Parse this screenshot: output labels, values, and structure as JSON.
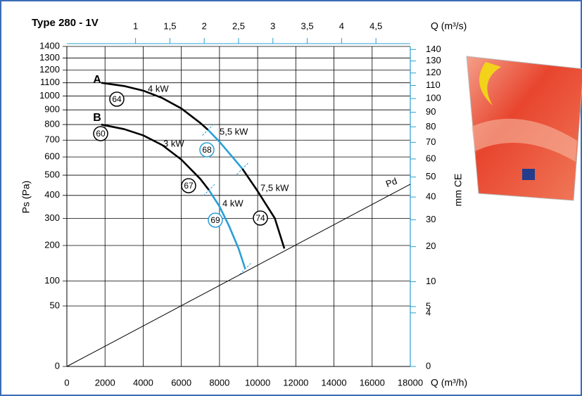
{
  "chart_data": {
    "type": "line",
    "title": "Type 280 - 1V",
    "x_label": "Q (m³/h)",
    "x2_label": "Q (m³/s)",
    "y_label": "Ps  (Pa)",
    "y2_label": "mm CE",
    "y_scale": "sqrt",
    "grid": true,
    "xlim": [
      0,
      18000
    ],
    "xticks": [
      0,
      2000,
      4000,
      6000,
      8000,
      10000,
      12000,
      14000,
      16000,
      18000
    ],
    "ylim": [
      0,
      1400
    ],
    "yticks": [
      0,
      50,
      100,
      200,
      300,
      400,
      500,
      600,
      700,
      800,
      900,
      1000,
      1100,
      1200,
      1300,
      1400
    ],
    "x2lim": [
      0,
      5
    ],
    "x2ticks": [
      1,
      {
        "value": 1.5,
        "label": "1,5"
      },
      2,
      {
        "value": 2.5,
        "label": "2,5"
      },
      3,
      {
        "value": 3.5,
        "label": "3,5"
      },
      4,
      {
        "value": 4.5,
        "label": "4,5"
      }
    ],
    "y2lim": [
      0,
      142.7
    ],
    "y2ticks": [
      0,
      4,
      5,
      10,
      20,
      30,
      40,
      50,
      60,
      70,
      80,
      90,
      100,
      110,
      120,
      130,
      140
    ],
    "axis_color": "#2a9fd6",
    "series": [
      {
        "name": "4 kW",
        "color": "#000000",
        "x": [
          1800,
          3000,
          4000,
          5000,
          6000,
          7000,
          7400
        ],
        "values": [
          1100,
          1075,
          1040,
          985,
          910,
          810,
          765
        ]
      },
      {
        "name": "5,5 kW",
        "color": "#2a9fd6",
        "x": [
          7400,
          8000,
          8600,
          9200
        ],
        "values": [
          765,
          690,
          610,
          534
        ]
      },
      {
        "name": "7,5 kW",
        "color": "#000000",
        "x": [
          9200,
          10000,
          10900,
          11400
        ],
        "values": [
          534,
          420,
          300,
          190
        ]
      },
      {
        "name": "3 kW",
        "color": "#000000",
        "x": [
          1800,
          3000,
          4000,
          5000,
          6000,
          7000,
          7450
        ],
        "values": [
          800,
          770,
          730,
          670,
          585,
          480,
          425
        ]
      },
      {
        "name": "4 kW",
        "color": "#2a9fd6",
        "x": [
          7450,
          8000,
          8500,
          9000,
          9350
        ],
        "values": [
          425,
          350,
          270,
          190,
          130
        ]
      },
      {
        "name": "Pd",
        "color": "#000000",
        "x": [
          0,
          18000
        ],
        "values": [
          0,
          454
        ]
      }
    ],
    "curve_labels": [
      {
        "text": "A",
        "color": "#2a9fd6"
      },
      {
        "text": "B",
        "color": "#2a9fd6"
      }
    ],
    "annotations": [
      {
        "text": "64",
        "color": "#000000"
      },
      {
        "text": "60",
        "color": "#000000"
      },
      {
        "text": "67",
        "color": "#000000"
      },
      {
        "text": "68",
        "color": "#2a9fd6"
      },
      {
        "text": "69",
        "color": "#2a9fd6"
      },
      {
        "text": "74",
        "color": "#000000"
      }
    ]
  }
}
